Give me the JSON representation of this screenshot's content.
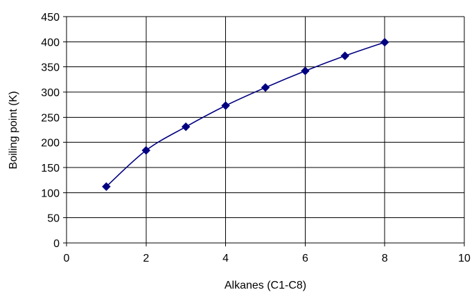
{
  "chart_data": {
    "type": "scatter",
    "xlabel": "Alkanes (C1-C8)",
    "ylabel": "Boiling point (K)",
    "xlim": [
      0,
      10
    ],
    "ylim": [
      0,
      450
    ],
    "xticks": [
      0,
      2,
      4,
      6,
      8,
      10
    ],
    "yticks": [
      0,
      50,
      100,
      150,
      200,
      250,
      300,
      350,
      400,
      450
    ],
    "grid": true,
    "smooth_line": true,
    "marker": "diamond",
    "series": [
      {
        "x": [
          1,
          2,
          3,
          4,
          5,
          6,
          7,
          8
        ],
        "y": [
          112,
          184,
          231,
          273,
          309,
          342,
          372,
          399
        ],
        "color": "#000080"
      }
    ]
  }
}
